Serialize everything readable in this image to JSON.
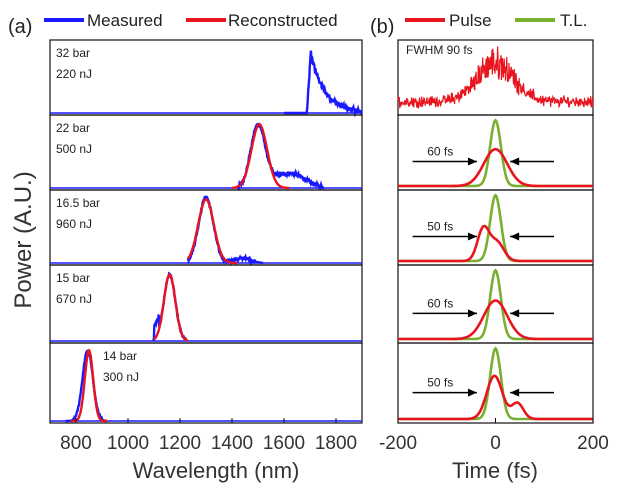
{
  "chart_data": [
    {
      "panel": "(a)",
      "type": "line",
      "xlabel": "Wavelength (nm)",
      "ylabel": "Power (A.U.)",
      "xlim": [
        700,
        1900
      ],
      "xticks": [
        "800",
        "1000",
        "1200",
        "1400",
        "1600",
        "1800"
      ],
      "legend": [
        "Measured",
        "Reconstructed"
      ],
      "colors": {
        "measured": "#1a1aff",
        "reconstructed": "#e8141e"
      },
      "subpanels": [
        {
          "pressure": "32 bar",
          "energy": "220 nJ",
          "peak_nm": 1700,
          "measured": true,
          "reconstructed": false
        },
        {
          "pressure": "22 bar",
          "energy": "500 nJ",
          "peak_nm": 1500,
          "measured": true,
          "reconstructed": true
        },
        {
          "pressure": "16.5 bar",
          "energy": "960 nJ",
          "peak_nm": 1300,
          "measured": true,
          "reconstructed": true
        },
        {
          "pressure": "15 bar",
          "energy": "670 nJ",
          "peak_nm": 1160,
          "measured": true,
          "reconstructed": true
        },
        {
          "pressure": "14 bar",
          "energy": "300 nJ",
          "peak_nm": 845,
          "measured": true,
          "reconstructed": true
        }
      ]
    },
    {
      "panel": "(b)",
      "type": "line",
      "xlabel": "Time (fs)",
      "xlim": [
        -200,
        200
      ],
      "xticks": [
        "-200",
        "0",
        "200"
      ],
      "legend": [
        "Pulse",
        "T.L."
      ],
      "colors": {
        "pulse": "#e8141e",
        "tl": "#7ab030"
      },
      "subpanels": [
        {
          "annotation": "FWHM 90 fs"
        },
        {
          "annotation": "60 fs"
        },
        {
          "annotation": "50 fs"
        },
        {
          "annotation": "60 fs"
        },
        {
          "annotation": "50 fs"
        }
      ]
    }
  ]
}
